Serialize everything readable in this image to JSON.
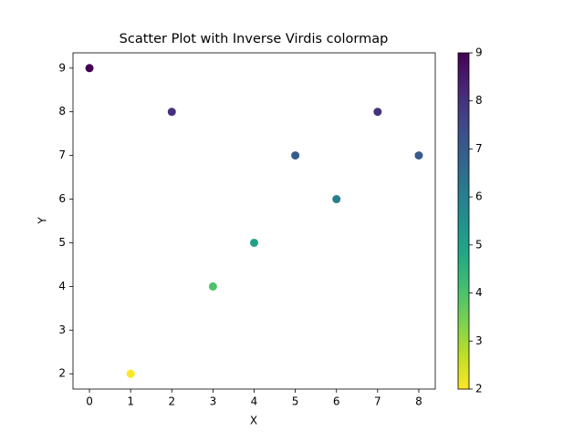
{
  "chart_data": {
    "type": "scatter",
    "title": "Scatter Plot with Inverse Virdis colormap",
    "x_label": "X",
    "y_label": "Y",
    "x": [
      0,
      1,
      2,
      3,
      4,
      5,
      6,
      7,
      8
    ],
    "y": [
      9,
      2,
      8,
      4,
      5,
      7,
      6,
      8,
      7
    ],
    "xlim": [
      -0.4,
      8.4
    ],
    "xticks": [
      0,
      1,
      2,
      3,
      4,
      5,
      6,
      7,
      8
    ],
    "ylim": [
      1.65,
      9.35
    ],
    "yticks": [
      2,
      3,
      4,
      5,
      6,
      7,
      8,
      9
    ],
    "colormap": "viridis_r",
    "colorbar": {
      "lim": [
        2,
        9
      ],
      "ticks": [
        2,
        3,
        4,
        5,
        6,
        7,
        8,
        9
      ]
    }
  }
}
